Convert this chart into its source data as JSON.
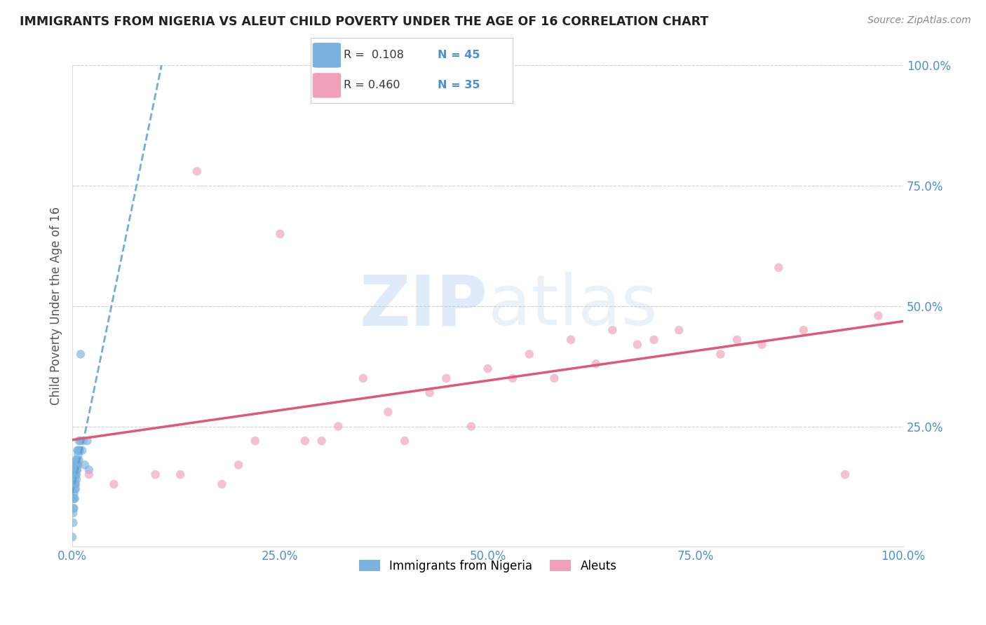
{
  "title": "IMMIGRANTS FROM NIGERIA VS ALEUT CHILD POVERTY UNDER THE AGE OF 16 CORRELATION CHART",
  "source": "Source: ZipAtlas.com",
  "ylabel_label": "Child Poverty Under the Age of 16",
  "xlim": [
    0.0,
    1.0
  ],
  "ylim": [
    0.0,
    1.0
  ],
  "x_ticks": [
    0.0,
    0.25,
    0.5,
    0.75,
    1.0
  ],
  "y_ticks": [
    0.25,
    0.5,
    0.75,
    1.0
  ],
  "x_tick_labels": [
    "0.0%",
    "25.0%",
    "50.0%",
    "75.0%",
    "100.0%"
  ],
  "y_tick_labels": [
    "25.0%",
    "50.0%",
    "75.0%",
    "100.0%"
  ],
  "grid_color": "#cccccc",
  "background_color": "#ffffff",
  "legend_R1": "R =  0.108",
  "legend_N1": "N = 45",
  "legend_R2": "R = 0.460",
  "legend_N2": "N = 35",
  "blue_color": "#7ab3e0",
  "pink_color": "#f0a0b8",
  "blue_line_color": "#5a9fd4",
  "pink_line_color": "#e05878",
  "marker_size": 9,
  "alpha": 0.65,
  "nigeria_x": [
    0.0,
    0.001,
    0.001,
    0.001,
    0.001,
    0.002,
    0.002,
    0.002,
    0.002,
    0.002,
    0.003,
    0.003,
    0.003,
    0.003,
    0.003,
    0.003,
    0.004,
    0.004,
    0.004,
    0.004,
    0.004,
    0.004,
    0.005,
    0.005,
    0.005,
    0.005,
    0.005,
    0.006,
    0.006,
    0.006,
    0.006,
    0.007,
    0.007,
    0.007,
    0.008,
    0.008,
    0.008,
    0.009,
    0.01,
    0.01,
    0.012,
    0.013,
    0.015,
    0.018,
    0.02
  ],
  "nigeria_y": [
    0.02,
    0.05,
    0.07,
    0.08,
    0.1,
    0.08,
    0.1,
    0.11,
    0.13,
    0.15,
    0.1,
    0.12,
    0.13,
    0.14,
    0.15,
    0.16,
    0.12,
    0.13,
    0.15,
    0.16,
    0.17,
    0.18,
    0.14,
    0.15,
    0.16,
    0.17,
    0.18,
    0.16,
    0.17,
    0.18,
    0.2,
    0.17,
    0.19,
    0.2,
    0.18,
    0.2,
    0.22,
    0.2,
    0.4,
    0.22,
    0.2,
    0.22,
    0.17,
    0.22,
    0.16
  ],
  "aleut_x": [
    0.02,
    0.05,
    0.1,
    0.13,
    0.15,
    0.18,
    0.2,
    0.22,
    0.25,
    0.28,
    0.3,
    0.32,
    0.35,
    0.38,
    0.4,
    0.43,
    0.45,
    0.48,
    0.5,
    0.53,
    0.55,
    0.58,
    0.6,
    0.63,
    0.65,
    0.68,
    0.7,
    0.73,
    0.78,
    0.8,
    0.83,
    0.85,
    0.88,
    0.93,
    0.97
  ],
  "aleut_y": [
    0.15,
    0.13,
    0.15,
    0.15,
    0.78,
    0.13,
    0.17,
    0.22,
    0.65,
    0.22,
    0.22,
    0.25,
    0.35,
    0.28,
    0.22,
    0.32,
    0.35,
    0.25,
    0.37,
    0.35,
    0.4,
    0.35,
    0.43,
    0.38,
    0.45,
    0.42,
    0.43,
    0.45,
    0.4,
    0.43,
    0.42,
    0.58,
    0.45,
    0.15,
    0.48
  ]
}
